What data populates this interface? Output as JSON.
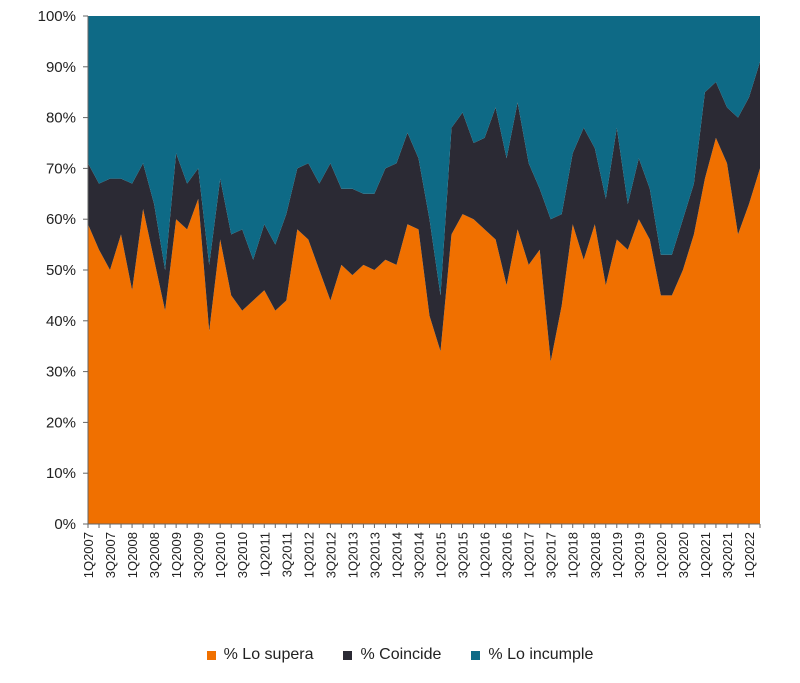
{
  "chart_data": {
    "type": "area",
    "stacked": true,
    "ylim": [
      0,
      100
    ],
    "y_ticks": [
      "0%",
      "10%",
      "20%",
      "30%",
      "40%",
      "50%",
      "60%",
      "70%",
      "80%",
      "90%",
      "100%"
    ],
    "x_tick_labels": [
      "1Q2007",
      "3Q2007",
      "1Q2008",
      "3Q2008",
      "1Q2009",
      "3Q2009",
      "1Q2010",
      "3Q2010",
      "1Q2011",
      "3Q2011",
      "1Q2012",
      "3Q2012",
      "1Q2013",
      "3Q2013",
      "1Q2014",
      "3Q2014",
      "1Q2015",
      "3Q2015",
      "1Q2016",
      "3Q2016",
      "1Q2017",
      "3Q2017",
      "1Q2018",
      "3Q2018",
      "1Q2019",
      "3Q2019",
      "1Q2020",
      "3Q2020",
      "1Q2021",
      "3Q2021",
      "1Q2022"
    ],
    "x": [
      "1Q2007",
      "2Q2007",
      "3Q2007",
      "4Q2007",
      "1Q2008",
      "2Q2008",
      "3Q2008",
      "4Q2008",
      "1Q2009",
      "2Q2009",
      "3Q2009",
      "4Q2009",
      "1Q2010",
      "2Q2010",
      "3Q2010",
      "4Q2010",
      "1Q2011",
      "2Q2011",
      "3Q2011",
      "4Q2011",
      "1Q2012",
      "2Q2012",
      "3Q2012",
      "4Q2012",
      "1Q2013",
      "2Q2013",
      "3Q2013",
      "4Q2013",
      "1Q2014",
      "2Q2014",
      "3Q2014",
      "4Q2014",
      "1Q2015",
      "2Q2015",
      "3Q2015",
      "4Q2015",
      "1Q2016",
      "2Q2016",
      "3Q2016",
      "4Q2016",
      "1Q2017",
      "2Q2017",
      "3Q2017",
      "4Q2017",
      "1Q2018",
      "2Q2018",
      "3Q2018",
      "4Q2018",
      "1Q2019",
      "2Q2019",
      "3Q2019",
      "4Q2019",
      "1Q2020",
      "2Q2020",
      "3Q2020",
      "4Q2020",
      "1Q2021",
      "2Q2021",
      "3Q2021",
      "4Q2021",
      "1Q2022",
      "2Q2022"
    ],
    "series": [
      {
        "name": "% Lo supera",
        "color": "#f07000",
        "values": [
          59,
          54,
          50,
          57,
          46,
          62,
          52,
          42,
          60,
          58,
          64,
          38,
          56,
          45,
          42,
          44,
          46,
          42,
          44,
          58,
          56,
          50,
          44,
          51,
          49,
          51,
          50,
          52,
          51,
          59,
          58,
          41,
          34,
          57,
          61,
          60,
          58,
          56,
          47,
          58,
          51,
          54,
          32,
          43,
          59,
          52,
          59,
          47,
          56,
          54,
          60,
          56,
          45,
          45,
          50,
          57,
          68,
          76,
          71,
          57,
          63,
          70
        ]
      },
      {
        "name": "% Coincide",
        "color": "#2b2a34",
        "values": [
          12,
          13,
          18,
          11,
          21,
          9,
          11,
          8,
          13,
          9,
          6,
          13,
          12,
          12,
          16,
          8,
          13,
          13,
          17,
          12,
          15,
          17,
          27,
          15,
          17,
          14,
          15,
          18,
          20,
          18,
          14,
          19,
          11,
          21,
          20,
          15,
          18,
          26,
          25,
          25,
          20,
          12,
          28,
          18,
          14,
          26,
          15,
          17,
          22,
          9,
          12,
          10,
          8,
          8,
          10,
          10,
          17,
          11,
          11,
          23,
          21,
          21
        ]
      },
      {
        "name": "% Lo incumple",
        "color": "#0e6a86",
        "values": [
          29,
          33,
          32,
          32,
          33,
          29,
          37,
          50,
          27,
          33,
          30,
          49,
          32,
          43,
          42,
          48,
          41,
          45,
          39,
          30,
          29,
          33,
          29,
          34,
          34,
          35,
          35,
          30,
          29,
          23,
          28,
          40,
          55,
          22,
          19,
          25,
          24,
          18,
          28,
          17,
          29,
          34,
          40,
          39,
          27,
          22,
          26,
          36,
          22,
          37,
          28,
          34,
          47,
          47,
          40,
          33,
          15,
          13,
          18,
          20,
          16,
          9
        ]
      }
    ]
  }
}
